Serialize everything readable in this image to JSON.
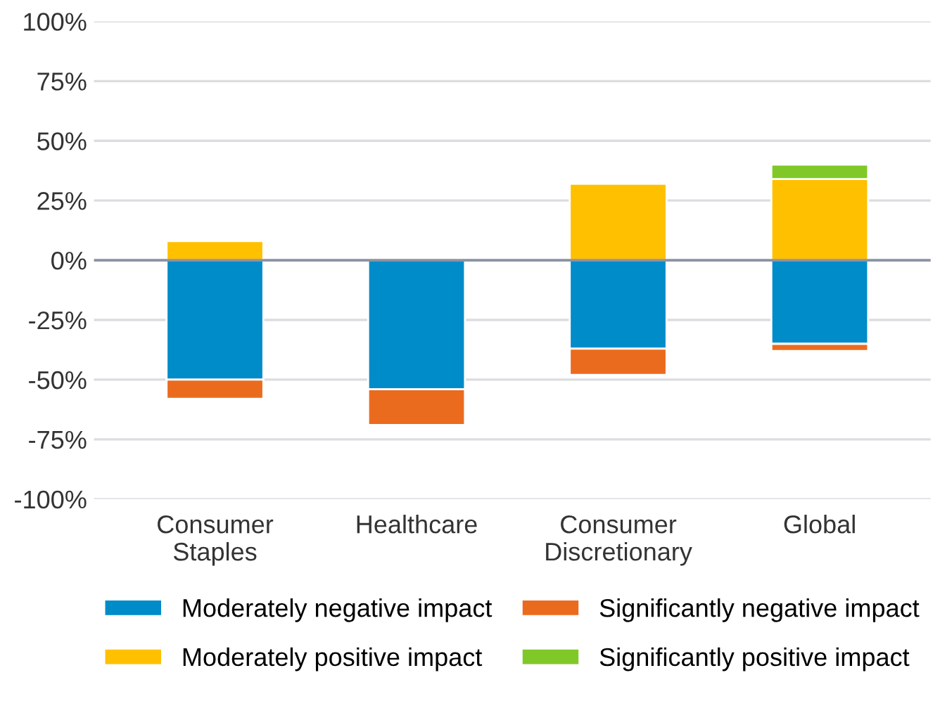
{
  "chart_data": {
    "type": "bar",
    "stacked": true,
    "categories": [
      "Consumer\nStaples",
      "Healthcare",
      "Consumer\nDiscretionary",
      "Global"
    ],
    "series": [
      {
        "name": "Moderately negative impact",
        "color": "#008bc9",
        "values": [
          -50,
          -54,
          -37,
          -35
        ]
      },
      {
        "name": "Significantly negative impact",
        "color": "#eb6b1e",
        "values": [
          -8,
          -15,
          -11,
          -3
        ]
      },
      {
        "name": "Moderately positive impact",
        "color": "#ffc000",
        "values": [
          8,
          null,
          32,
          34
        ]
      },
      {
        "name": "Significantly positive impact",
        "color": "#80c828",
        "values": [
          null,
          null,
          null,
          6
        ]
      }
    ],
    "ylim": [
      -100,
      100
    ],
    "yticks": [
      {
        "value": -100,
        "label": "-100%"
      },
      {
        "value": -75,
        "label": "-75%"
      },
      {
        "value": -50,
        "label": "-50%"
      },
      {
        "value": -25,
        "label": "-25%"
      },
      {
        "value": 0,
        "label": "0%"
      },
      {
        "value": 25,
        "label": "25%"
      },
      {
        "value": 50,
        "label": "50%"
      },
      {
        "value": 75,
        "label": "75%"
      },
      {
        "value": 100,
        "label": "100%"
      }
    ],
    "ref_lines": [
      {
        "axis": "y",
        "value": 0,
        "label": null,
        "color": "#8a93a3"
      }
    ],
    "grid": "y",
    "legend": "bottom"
  }
}
